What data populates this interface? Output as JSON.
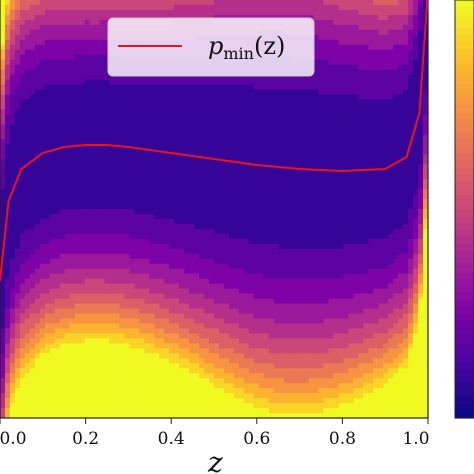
{
  "chart_data": {
    "type": "heatmap",
    "title": "",
    "xlabel": "z",
    "ylabel": "",
    "xlim": [
      0.0,
      1.0
    ],
    "x_ticks": [
      "0.0",
      "0.2",
      "0.4",
      "0.6",
      "0.8",
      "1.0"
    ],
    "x_tick_values": [
      0.0,
      0.2,
      0.4,
      0.6,
      0.8,
      1.0
    ],
    "colormap": "plasma",
    "colorbar": true,
    "grid": false,
    "legend": {
      "placement": "top-center",
      "entries": [
        "p_min(z)"
      ]
    },
    "series": [
      {
        "name": "p_min(z)",
        "type": "line",
        "color": "#e8141e",
        "x": [
          0.0,
          0.02,
          0.05,
          0.1,
          0.15,
          0.2,
          0.25,
          0.3,
          0.4,
          0.5,
          0.6,
          0.7,
          0.8,
          0.9,
          0.95,
          0.98,
          1.0
        ],
        "y": [
          -0.18,
          0.02,
          0.1,
          0.14,
          0.155,
          0.16,
          0.16,
          0.155,
          0.14,
          0.125,
          0.11,
          0.1,
          0.095,
          0.1,
          0.13,
          0.24,
          0.55
        ]
      }
    ]
  },
  "legend_label": {
    "symbol": "p",
    "subscript": "min",
    "argument": "(z)"
  }
}
